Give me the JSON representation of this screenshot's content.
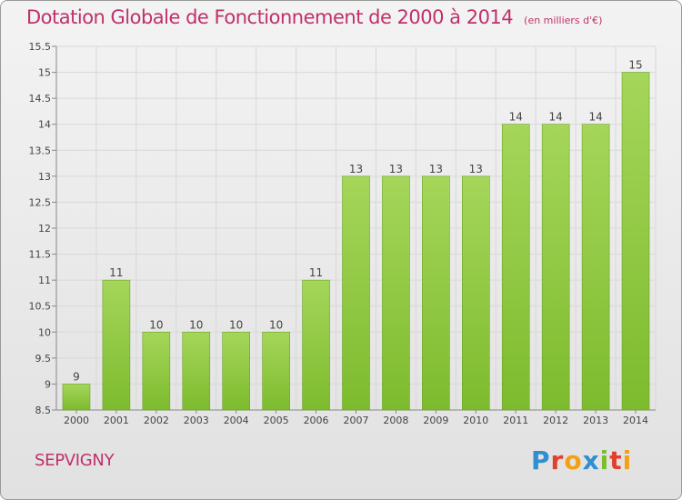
{
  "header": {
    "title": "Dotation Globale de Fonctionnement de 2000 à 2014",
    "subtitle": "(en milliers d'€)"
  },
  "footer": {
    "commune": "SEPVIGNY",
    "logo_text": "Proxiti",
    "logo_colors": [
      "#2f8fd0",
      "#e0412d",
      "#f4a016",
      "#2f8fd0",
      "#7bbd2c",
      "#e0412d",
      "#f4a016"
    ]
  },
  "chart_data": {
    "type": "bar",
    "title": "Dotation Globale de Fonctionnement de 2000 à 2014",
    "subtitle": "(en milliers d'€)",
    "categories": [
      "2000",
      "2001",
      "2002",
      "2003",
      "2004",
      "2005",
      "2006",
      "2007",
      "2008",
      "2009",
      "2010",
      "2011",
      "2012",
      "2013",
      "2014"
    ],
    "values": [
      9,
      11,
      10,
      10,
      10,
      10,
      11,
      13,
      13,
      13,
      13,
      14,
      14,
      14,
      15
    ],
    "data_labels": [
      "9",
      "11",
      "10",
      "10",
      "10",
      "10",
      "11",
      "13",
      "13",
      "13",
      "13",
      "14",
      "14",
      "14",
      "15"
    ],
    "ylim": [
      8.5,
      15.5
    ],
    "yticks": [
      8.5,
      9,
      9.5,
      10,
      10.5,
      11,
      11.5,
      12,
      12.5,
      13,
      13.5,
      14,
      14.5,
      15,
      15.5
    ],
    "ytick_labels": [
      "8.5",
      "9",
      "9.5",
      "10",
      "10.5",
      "11",
      "11.5",
      "12",
      "12.5",
      "13",
      "13.5",
      "14",
      "14.5",
      "15",
      "15.5"
    ],
    "grid": true,
    "legend": "none",
    "bar_color": "#7dbb2e",
    "bar_color_light": "#a5d65a",
    "grid_color": "#d8d8d8",
    "text_color": "#444444"
  }
}
